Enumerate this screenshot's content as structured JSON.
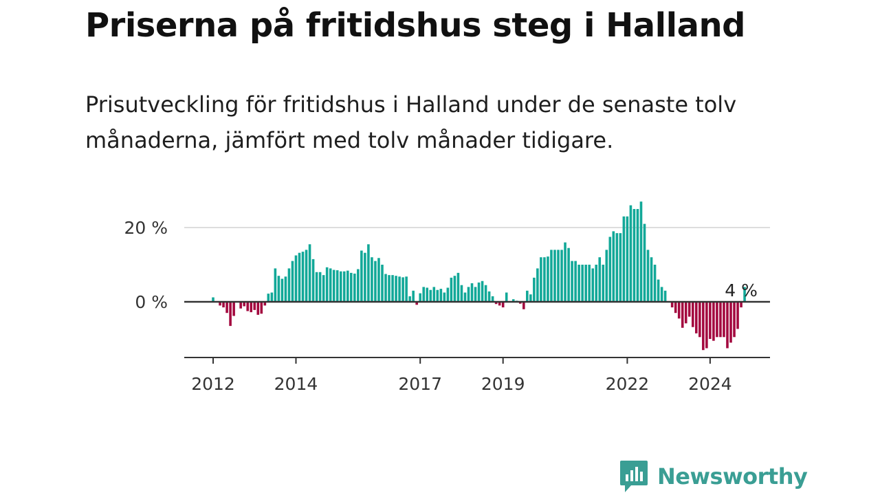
{
  "title": "Priserna på fritidshus steg i Halland",
  "subtitle": "Prisutveckling för fritidshus i Halland under de senaste tolv månaderna, jämfört med tolv månader tidigare.",
  "brand": {
    "name": "Newsworthy",
    "color": "#3a9e94"
  },
  "chart_data": {
    "type": "bar",
    "title": "Priserna på fritidshus steg i Halland",
    "subtitle": "Prisutveckling för fritidshus i Halland under de senaste tolv månaderna, jämfört med tolv månader tidigare.",
    "xlabel": "",
    "ylabel": "",
    "ylim": [
      -15,
      28
    ],
    "y_ticks": [
      0,
      20
    ],
    "y_tick_labels": [
      "0 %",
      "20 %"
    ],
    "x_tick_labels": [
      "2012",
      "2014",
      "2017",
      "2019",
      "2022",
      "2024"
    ],
    "x_tick_index": [
      0,
      24,
      60,
      84,
      120,
      144
    ],
    "grid": true,
    "legend": "none",
    "colors": {
      "positive": "#12a898",
      "negative": "#a3093f",
      "grid": "#dddddd",
      "baseline": "#333333"
    },
    "annotation": {
      "text": "4 %",
      "index": 153
    },
    "start": "2012-01",
    "values": [
      1.2,
      0,
      -1,
      -1.5,
      -3,
      -6.5,
      -3.8,
      0,
      -1.8,
      -1.2,
      -2.5,
      -2.8,
      -2.2,
      -3.5,
      -3.2,
      -1,
      2.2,
      2.5,
      9,
      7,
      6.2,
      6.8,
      9,
      11,
      12.5,
      13.2,
      13.5,
      14,
      15.5,
      11.5,
      8,
      8,
      7.2,
      9.3,
      9,
      8.6,
      8.5,
      8.2,
      8.2,
      8.4,
      7.8,
      7.6,
      8.8,
      13.8,
      13.2,
      15.5,
      12,
      11,
      11.8,
      10,
      7.5,
      7.2,
      7.2,
      7,
      6.8,
      6.6,
      6.8,
      1.5,
      3,
      -0.8,
      2.3,
      4,
      3.8,
      3.2,
      4,
      3.2,
      3.5,
      2.5,
      3.8,
      6.5,
      7,
      7.8,
      4.5,
      2.5,
      4,
      5,
      4,
      5.2,
      5.6,
      4.5,
      2.8,
      1.5,
      -0.6,
      -1,
      -1.5,
      2.5,
      0,
      0.7,
      0.3,
      -0.5,
      -2,
      3,
      2,
      6.5,
      9,
      12,
      12,
      12.2,
      14,
      14,
      14,
      14,
      16,
      14.5,
      11,
      11,
      10,
      10,
      10,
      10,
      9,
      10,
      12,
      10,
      14,
      17.5,
      19,
      18.5,
      18.5,
      23,
      23,
      26,
      25,
      25,
      27,
      21,
      14,
      12,
      10,
      6,
      4,
      3,
      0,
      -1.5,
      -3,
      -4.5,
      -7,
      -5.8,
      -4,
      -6.8,
      -8.5,
      -9.5,
      -13,
      -12.5,
      -10,
      -10.5,
      -9.5,
      -9.5,
      -9.5,
      -12.5,
      -11,
      -9.5,
      -7.3,
      -1.5,
      4
    ]
  }
}
